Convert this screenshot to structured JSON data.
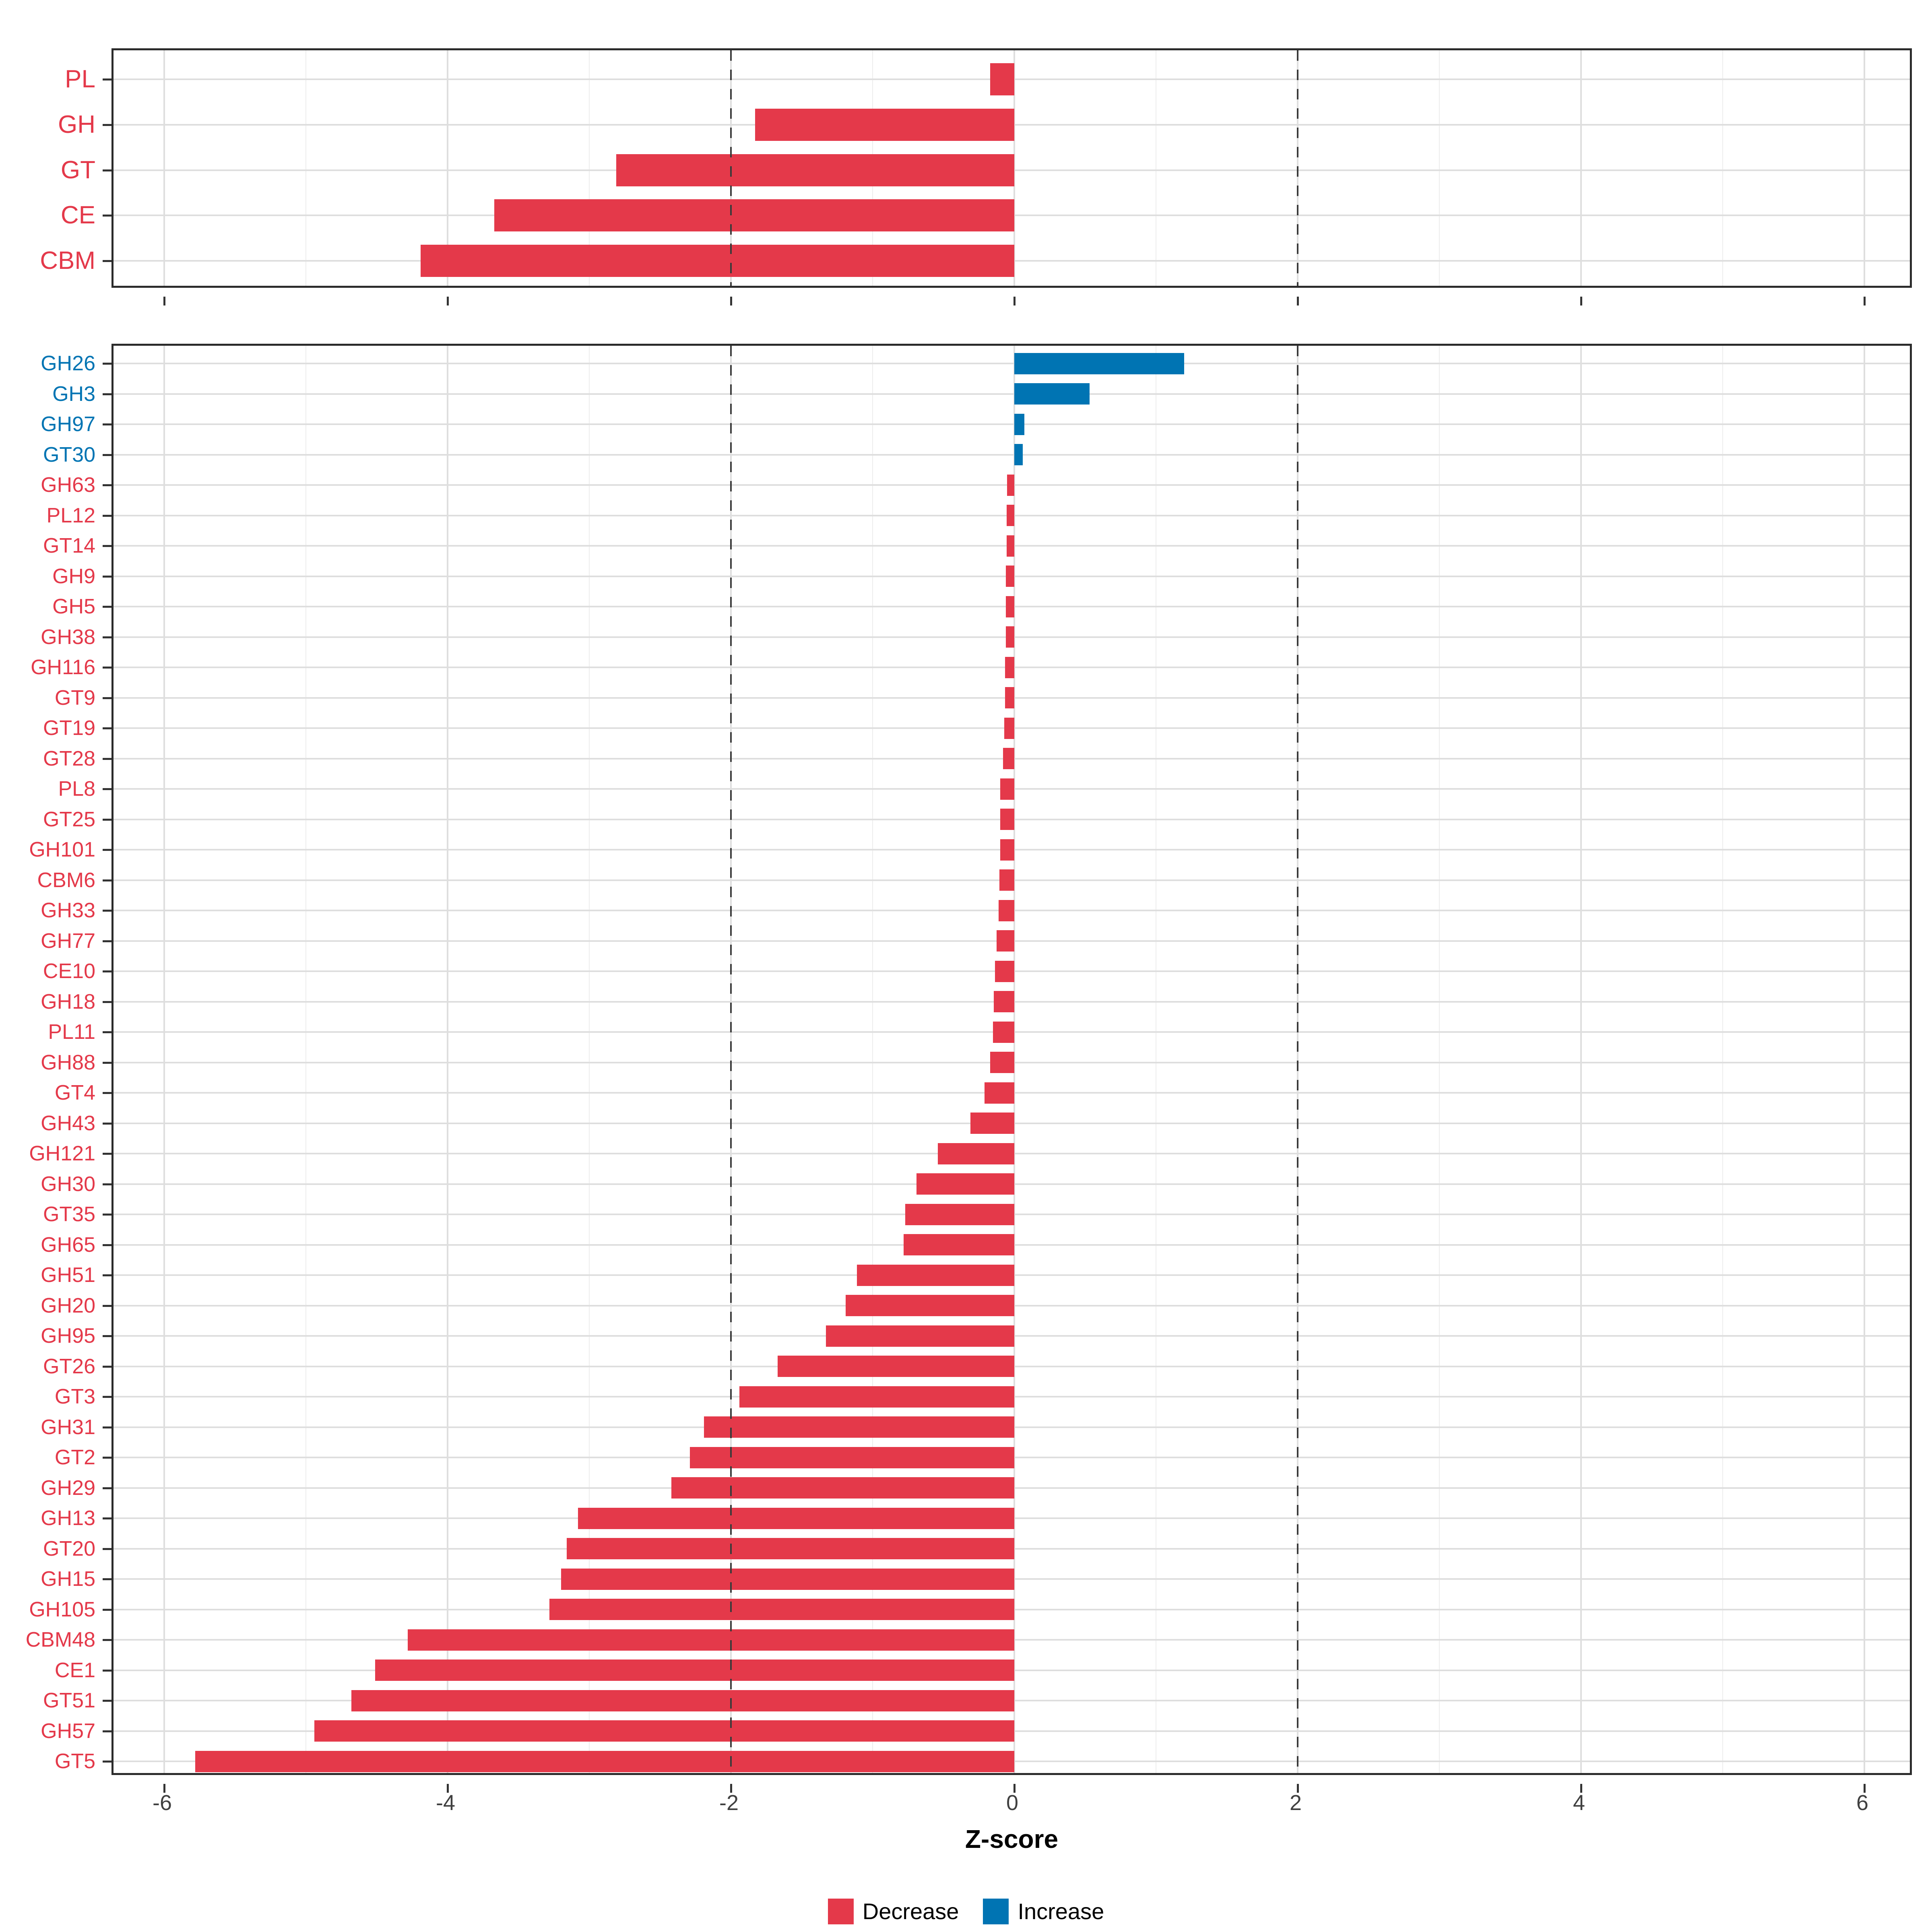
{
  "chart_data": {
    "type": "bar",
    "orientation": "horizontal",
    "title": "",
    "xlabel": "Z-score",
    "ylabel": "",
    "xlim": [
      -6.35,
      6.35
    ],
    "x_ticks": [
      -6,
      -4,
      -2,
      0,
      2,
      4,
      6
    ],
    "x_tick_labels": [
      "-6",
      "-4",
      "-2",
      "0",
      "2",
      "4",
      "6"
    ],
    "minor_gridlines": [
      -5,
      -3,
      -1,
      1,
      3,
      5
    ],
    "reference_lines_dashed": [
      -2,
      2
    ],
    "grid": "on",
    "legend_position": "bottom",
    "panels": [
      {
        "id": "cazyme-classes",
        "rows": [
          {
            "label": "PL",
            "value": -0.17,
            "direction": "Decrease"
          },
          {
            "label": "GH",
            "value": -1.83,
            "direction": "Decrease"
          },
          {
            "label": "GT",
            "value": -2.81,
            "direction": "Decrease"
          },
          {
            "label": "CE",
            "value": -3.67,
            "direction": "Decrease"
          },
          {
            "label": "CBM",
            "value": -4.19,
            "direction": "Decrease"
          }
        ]
      },
      {
        "id": "cazyme-families",
        "rows": [
          {
            "label": "GH26",
            "value": 1.2,
            "direction": "Increase"
          },
          {
            "label": "GH3",
            "value": 0.53,
            "direction": "Increase"
          },
          {
            "label": "GH97",
            "value": 0.07,
            "direction": "Increase"
          },
          {
            "label": "GT30",
            "value": 0.06,
            "direction": "Increase"
          },
          {
            "label": "GH63",
            "value": -0.05,
            "direction": "Decrease"
          },
          {
            "label": "PL12",
            "value": -0.055,
            "direction": "Decrease"
          },
          {
            "label": "GT14",
            "value": -0.055,
            "direction": "Decrease"
          },
          {
            "label": "GH9",
            "value": -0.06,
            "direction": "Decrease"
          },
          {
            "label": "GH5",
            "value": -0.06,
            "direction": "Decrease"
          },
          {
            "label": "GH38",
            "value": -0.06,
            "direction": "Decrease"
          },
          {
            "label": "GH116",
            "value": -0.065,
            "direction": "Decrease"
          },
          {
            "label": "GT9",
            "value": -0.065,
            "direction": "Decrease"
          },
          {
            "label": "GT19",
            "value": -0.07,
            "direction": "Decrease"
          },
          {
            "label": "GT28",
            "value": -0.08,
            "direction": "Decrease"
          },
          {
            "label": "PL8",
            "value": -0.1,
            "direction": "Decrease"
          },
          {
            "label": "GT25",
            "value": -0.1,
            "direction": "Decrease"
          },
          {
            "label": "GH101",
            "value": -0.1,
            "direction": "Decrease"
          },
          {
            "label": "CBM6",
            "value": -0.105,
            "direction": "Decrease"
          },
          {
            "label": "GH33",
            "value": -0.11,
            "direction": "Decrease"
          },
          {
            "label": "GH77",
            "value": -0.125,
            "direction": "Decrease"
          },
          {
            "label": "CE10",
            "value": -0.135,
            "direction": "Decrease"
          },
          {
            "label": "GH18",
            "value": -0.145,
            "direction": "Decrease"
          },
          {
            "label": "PL11",
            "value": -0.15,
            "direction": "Decrease"
          },
          {
            "label": "GH88",
            "value": -0.17,
            "direction": "Decrease"
          },
          {
            "label": "GT4",
            "value": -0.21,
            "direction": "Decrease"
          },
          {
            "label": "GH43",
            "value": -0.31,
            "direction": "Decrease"
          },
          {
            "label": "GH121",
            "value": -0.54,
            "direction": "Decrease"
          },
          {
            "label": "GH30",
            "value": -0.69,
            "direction": "Decrease"
          },
          {
            "label": "GT35",
            "value": -0.77,
            "direction": "Decrease"
          },
          {
            "label": "GH65",
            "value": -0.78,
            "direction": "Decrease"
          },
          {
            "label": "GH51",
            "value": -1.11,
            "direction": "Decrease"
          },
          {
            "label": "GH20",
            "value": -1.19,
            "direction": "Decrease"
          },
          {
            "label": "GH95",
            "value": -1.33,
            "direction": "Decrease"
          },
          {
            "label": "GT26",
            "value": -1.67,
            "direction": "Decrease"
          },
          {
            "label": "GT3",
            "value": -1.94,
            "direction": "Decrease"
          },
          {
            "label": "GH31",
            "value": -2.19,
            "direction": "Decrease"
          },
          {
            "label": "GT2",
            "value": -2.29,
            "direction": "Decrease"
          },
          {
            "label": "GH29",
            "value": -2.42,
            "direction": "Decrease"
          },
          {
            "label": "GH13",
            "value": -3.08,
            "direction": "Decrease"
          },
          {
            "label": "GT20",
            "value": -3.16,
            "direction": "Decrease"
          },
          {
            "label": "GH15",
            "value": -3.2,
            "direction": "Decrease"
          },
          {
            "label": "GH105",
            "value": -3.28,
            "direction": "Decrease"
          },
          {
            "label": "CBM48",
            "value": -4.28,
            "direction": "Decrease"
          },
          {
            "label": "CE1",
            "value": -4.51,
            "direction": "Decrease"
          },
          {
            "label": "GT51",
            "value": -4.68,
            "direction": "Decrease"
          },
          {
            "label": "GH57",
            "value": -4.94,
            "direction": "Decrease"
          },
          {
            "label": "GT5",
            "value": -5.78,
            "direction": "Decrease"
          }
        ]
      }
    ]
  },
  "legend": {
    "items": [
      {
        "label": "Decrease",
        "color": "#e4394a"
      },
      {
        "label": "Increase",
        "color": "#0074b3"
      }
    ]
  },
  "colors": {
    "decrease": "#e4394a",
    "increase": "#0074b3",
    "grid_major": "#dedede",
    "grid_minor": "#ededed",
    "panel_border": "#2b2b2b",
    "tick": "#333333",
    "tick_label": "#404040",
    "reference_line": "#3a3a3a"
  }
}
